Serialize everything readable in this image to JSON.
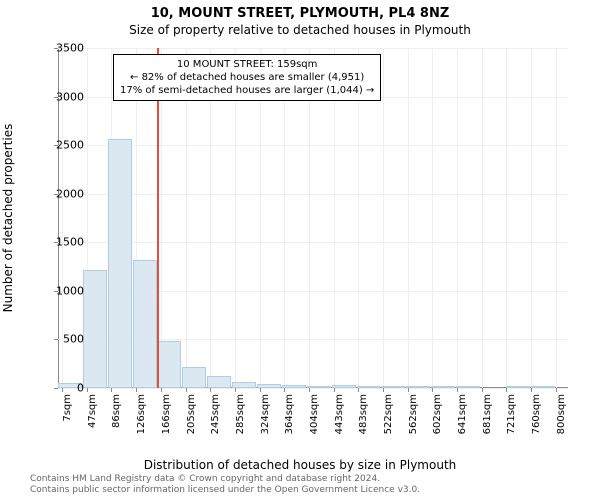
{
  "title_main": "10, MOUNT STREET, PLYMOUTH, PL4 8NZ",
  "title_sub": "Size of property relative to detached houses in Plymouth",
  "chart": {
    "type": "histogram",
    "ylim": [
      0,
      3500
    ],
    "ytick_step": 500,
    "yticks": [
      0,
      500,
      1000,
      1500,
      2000,
      2500,
      3000,
      3500
    ],
    "xlim": [
      0,
      820
    ],
    "xticks": [
      7,
      47,
      86,
      126,
      166,
      205,
      245,
      285,
      324,
      364,
      404,
      443,
      483,
      522,
      562,
      602,
      641,
      681,
      721,
      760,
      800
    ],
    "xtick_suffix": "sqm",
    "bar_color": "#dbe8f1",
    "bar_border": "#b3cde0",
    "grid_color": "#eaf0f4",
    "background_color": "#ffffff",
    "marker_color": "#e74c3c",
    "marker_x": 159,
    "bars": [
      {
        "x0": 0,
        "x1": 40,
        "y": 50
      },
      {
        "x0": 40,
        "x1": 80,
        "y": 1220
      },
      {
        "x0": 80,
        "x1": 120,
        "y": 2560
      },
      {
        "x0": 120,
        "x1": 160,
        "y": 1320
      },
      {
        "x0": 160,
        "x1": 200,
        "y": 480
      },
      {
        "x0": 200,
        "x1": 240,
        "y": 220
      },
      {
        "x0": 240,
        "x1": 280,
        "y": 120
      },
      {
        "x0": 280,
        "x1": 320,
        "y": 60
      },
      {
        "x0": 320,
        "x1": 360,
        "y": 40
      },
      {
        "x0": 360,
        "x1": 400,
        "y": 30
      },
      {
        "x0": 400,
        "x1": 440,
        "y": 20
      },
      {
        "x0": 440,
        "x1": 480,
        "y": 30
      },
      {
        "x0": 480,
        "x1": 520,
        "y": 5
      },
      {
        "x0": 520,
        "x1": 560,
        "y": 3
      },
      {
        "x0": 560,
        "x1": 600,
        "y": 3
      },
      {
        "x0": 600,
        "x1": 640,
        "y": 2
      },
      {
        "x0": 640,
        "x1": 680,
        "y": 2
      },
      {
        "x0": 680,
        "x1": 720,
        "y": 0
      },
      {
        "x0": 720,
        "x1": 760,
        "y": 1
      },
      {
        "x0": 760,
        "x1": 800,
        "y": 1
      }
    ],
    "ylabel": "Number of detached properties",
    "xlabel": "Distribution of detached houses by size in Plymouth",
    "title_fontsize": 13,
    "label_fontsize": 12,
    "tick_fontsize": 11
  },
  "annotation": {
    "lines": [
      "10 MOUNT STREET: 159sqm",
      "← 82% of detached houses are smaller (4,951)",
      "17% of semi-detached houses are larger (1,044) →"
    ],
    "border_color": "#000000",
    "background": "#ffffff",
    "fontsize": 10
  },
  "footer": {
    "line1": "Contains HM Land Registry data © Crown copyright and database right 2024.",
    "line2": "Contains public sector information licensed under the Open Government Licence v3.0.",
    "color": "#666666"
  }
}
